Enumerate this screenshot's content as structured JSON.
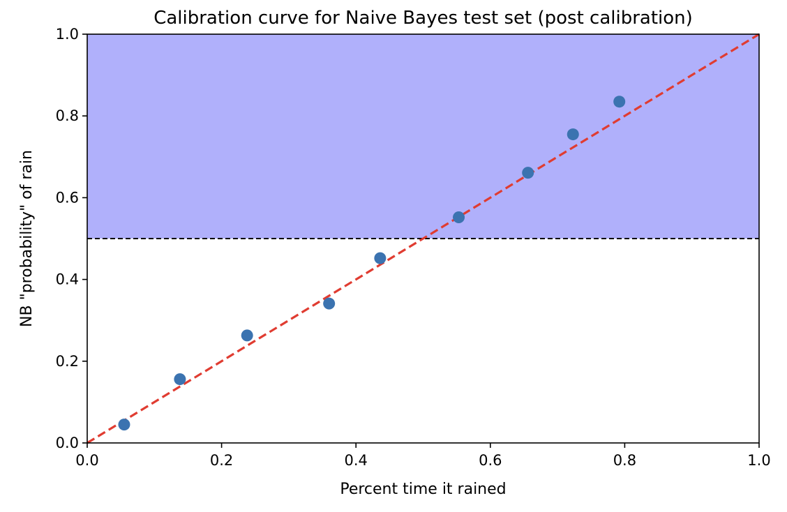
{
  "chart_data": {
    "type": "scatter",
    "title": "Calibration curve for Naive Bayes test set (post calibration)",
    "xlabel": "Percent time it rained",
    "ylabel": "NB \"probability\" of rain",
    "xlim": [
      0.0,
      1.0
    ],
    "ylim": [
      0.0,
      1.0
    ],
    "x_ticks": [
      "0.0",
      "0.2",
      "0.4",
      "0.6",
      "0.8",
      "1.0"
    ],
    "y_ticks": [
      "0.0",
      "0.2",
      "0.4",
      "0.6",
      "0.8",
      "1.0"
    ],
    "x_tick_values": [
      0.0,
      0.2,
      0.4,
      0.6,
      0.8,
      1.0
    ],
    "y_tick_values": [
      0.0,
      0.2,
      0.4,
      0.6,
      0.8,
      1.0
    ],
    "grid": false,
    "points": {
      "x": [
        0.055,
        0.138,
        0.238,
        0.36,
        0.436,
        0.553,
        0.656,
        0.723,
        0.792
      ],
      "y": [
        0.045,
        0.156,
        0.263,
        0.341,
        0.452,
        0.552,
        0.661,
        0.755,
        0.835
      ],
      "color": "#3b73b0"
    },
    "reference_line": {
      "from": [
        0.0,
        0.0
      ],
      "to": [
        1.0,
        1.0
      ],
      "style": "dashed",
      "color": "#e03c31"
    },
    "threshold_line": {
      "y": 0.5,
      "style": "dashed",
      "color": "#000000"
    },
    "shaded_region": {
      "y_from": 0.5,
      "y_to": 1.0,
      "color": "#b0b0fb"
    }
  }
}
